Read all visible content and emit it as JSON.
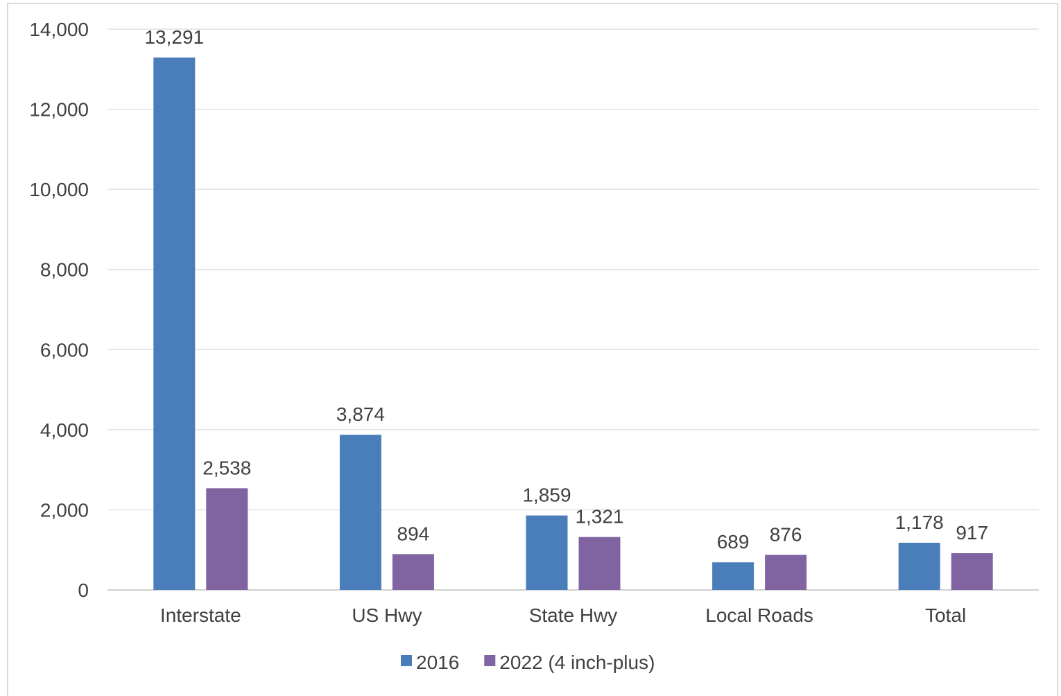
{
  "chart_data": {
    "type": "bar",
    "categories": [
      "Interstate",
      "US Hwy",
      "State Hwy",
      "Local Roads",
      "Total"
    ],
    "series": [
      {
        "name": "2016",
        "color": "#4a7ebb",
        "values": [
          13291,
          3874,
          1859,
          689,
          1178
        ]
      },
      {
        "name": "2022 (4 inch-plus)",
        "color": "#8064a2",
        "values": [
          2538,
          894,
          1321,
          876,
          917
        ]
      }
    ],
    "ylim": [
      0,
      14000
    ],
    "yticks": [
      0,
      2000,
      4000,
      6000,
      8000,
      10000,
      12000,
      14000
    ],
    "ytick_labels": [
      "0",
      "2,000",
      "4,000",
      "6,000",
      "8,000",
      "10,000",
      "12,000",
      "14,000"
    ],
    "data_labels": [
      [
        "13,291",
        "3,874",
        "1,859",
        "689",
        "1,178"
      ],
      [
        "2,538",
        "894",
        "1,321",
        "876",
        "917"
      ]
    ],
    "title": "",
    "xlabel": "",
    "ylabel": "",
    "grid": true,
    "legend_position": "bottom"
  }
}
